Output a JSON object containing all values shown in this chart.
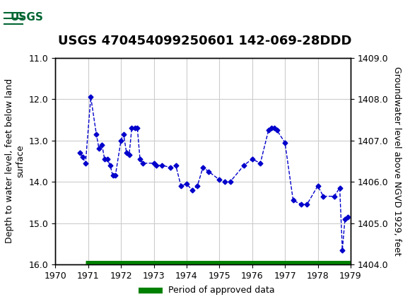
{
  "title": "USGS 470454099250601 142-069-28DDD",
  "ylabel_left": "Depth to water level, feet below land\nsurface",
  "ylabel_right": "Groundwater level above NGVD 1929, feet",
  "xlim": [
    1970,
    1979
  ],
  "ylim_left": [
    16.0,
    11.0
  ],
  "ylim_right": [
    1404.0,
    1409.0
  ],
  "xticks": [
    1970,
    1971,
    1972,
    1973,
    1974,
    1975,
    1976,
    1977,
    1978,
    1979
  ],
  "yticks_left": [
    11.0,
    12.0,
    13.0,
    14.0,
    15.0,
    16.0
  ],
  "yticks_right": [
    1404.0,
    1405.0,
    1406.0,
    1407.0,
    1408.0,
    1409.0
  ],
  "data_x": [
    1970.75,
    1970.83,
    1970.92,
    1971.08,
    1971.25,
    1971.33,
    1971.42,
    1971.5,
    1971.58,
    1971.67,
    1971.75,
    1971.83,
    1972.0,
    1972.08,
    1972.17,
    1972.25,
    1972.33,
    1972.42,
    1972.5,
    1972.58,
    1972.67,
    1973.0,
    1973.08,
    1973.25,
    1973.5,
    1973.67,
    1973.83,
    1974.0,
    1974.17,
    1974.33,
    1974.5,
    1974.67,
    1975.0,
    1975.17,
    1975.33,
    1975.75,
    1976.0,
    1976.25,
    1976.5,
    1976.58,
    1976.67,
    1976.75,
    1977.0,
    1977.25,
    1977.5,
    1977.67,
    1978.0,
    1978.17,
    1978.5,
    1978.67,
    1978.75,
    1978.83,
    1978.92
  ],
  "data_y": [
    13.3,
    13.4,
    13.55,
    11.95,
    12.85,
    13.2,
    13.1,
    13.45,
    13.45,
    13.6,
    13.85,
    13.85,
    13.0,
    12.85,
    13.3,
    13.35,
    12.7,
    12.7,
    12.7,
    13.45,
    13.55,
    13.55,
    13.6,
    13.6,
    13.65,
    13.6,
    14.1,
    14.05,
    14.2,
    14.1,
    13.65,
    13.75,
    13.95,
    14.0,
    14.0,
    13.6,
    13.45,
    13.55,
    12.75,
    12.7,
    12.7,
    12.75,
    13.05,
    14.45,
    14.55,
    14.55,
    14.1,
    14.35,
    14.35,
    14.15,
    15.65,
    14.9,
    14.85
  ],
  "approved_bar_y": 16.0,
  "approved_bar_x_start": 1970.92,
  "approved_bar_x_end": 1979.0,
  "line_color": "#0000CC",
  "marker_color": "#0000CC",
  "approved_color": "#008000",
  "background_color": "#ffffff",
  "header_color": "#006633",
  "grid_color": "#cccccc",
  "title_fontsize": 13,
  "axis_label_fontsize": 9,
  "tick_fontsize": 9,
  "legend_fontsize": 9
}
